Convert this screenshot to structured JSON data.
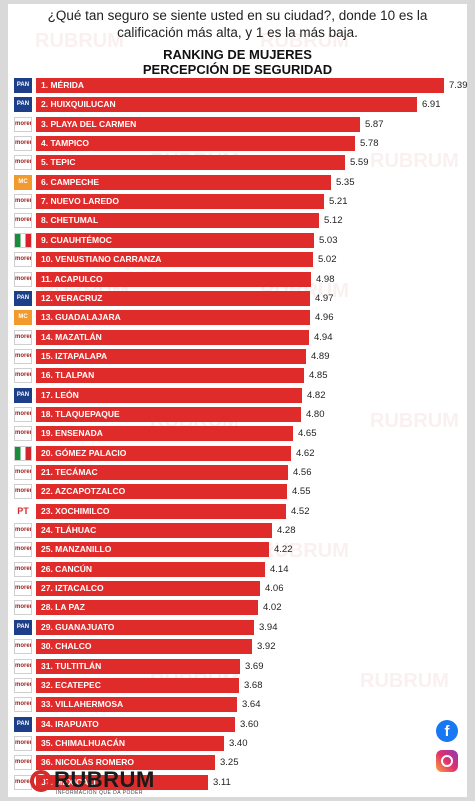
{
  "header": {
    "question_line1": "¿Qué tan seguro se siente usted en su ciudad?, donde 10 es la",
    "question_line2": "calificación más alta, y  1 es la más baja."
  },
  "chart_data": {
    "type": "bar",
    "orientation": "horizontal",
    "title_line1": "RANKING DE MUJERES",
    "title_line2": "PERCEPCIÓN DE SEGURIDAD",
    "xlim": [
      0,
      7.39
    ],
    "grid": false,
    "bar_color": "#e02b2b",
    "categories": [
      "1. MÉRIDA",
      "2. HUIXQUILUCAN",
      "3. PLAYA DEL CARMEN",
      "4. TAMPICO",
      "5. TEPIC",
      "6. CAMPECHE",
      "7. NUEVO LAREDO",
      "8. CHETUMAL",
      "9. CUAUHTÉMOC",
      "10. VENUSTIANO CARRANZA",
      "11. ACAPULCO",
      "12. VERACRUZ",
      "13. GUADALAJARA",
      "14. MAZATLÁN",
      "15. IZTAPALAPA",
      "16. TLALPAN",
      "17. LEÓN",
      "18. TLAQUEPAQUE",
      "19. ENSENADA",
      "20. GÓMEZ PALACIO",
      "21. TECÁMAC",
      "22. AZCAPOTZALCO",
      "23. XOCHIMILCO",
      "24. TLÁHUAC",
      "25. MANZANILLO",
      "26. CANCÚN",
      "27. IZTACALCO",
      "28. LA PAZ",
      "29. GUANAJUATO",
      "30. CHALCO",
      "31. TULTITLÁN",
      "32. ECATEPEC",
      "33. VILLAHERMOSA",
      "34. IRAPUATO",
      "35. CHIMALHUACÁN",
      "36. NICOLÁS ROMERO",
      "37. MEXICALI"
    ],
    "values": [
      7.39,
      6.91,
      5.87,
      5.78,
      5.59,
      5.35,
      5.21,
      5.12,
      5.03,
      5.02,
      4.98,
      4.97,
      4.96,
      4.94,
      4.89,
      4.85,
      4.82,
      4.8,
      4.65,
      4.62,
      4.56,
      4.55,
      4.52,
      4.28,
      4.22,
      4.14,
      4.06,
      4.02,
      3.94,
      3.92,
      3.69,
      3.68,
      3.64,
      3.6,
      3.4,
      3.25,
      3.11
    ],
    "value_labels": [
      "7.39",
      "6.91",
      "5.87",
      "5.78",
      "5.59",
      "5.35",
      "5.21",
      "5.12",
      "5.03",
      "5.02",
      "4.98",
      "4.97",
      "4.96",
      "4.94",
      "4.89",
      "4.85",
      "4.82",
      "4.80",
      "4.65",
      "4.62",
      "4.56",
      "4.55",
      "4.52",
      "4.28",
      "4.22",
      "4.14",
      "4.06",
      "4.02",
      "3.94",
      "3.92",
      "3.69",
      "3.68",
      "3.64",
      "3.60",
      "3.40",
      "3.25",
      "3.11"
    ],
    "party_icons": [
      "pan",
      "pan",
      "morena",
      "morena",
      "morena",
      "mc",
      "morena",
      "morena",
      "pri",
      "morena",
      "morena",
      "pan",
      "mc",
      "morena",
      "morena",
      "morena",
      "pan",
      "morena",
      "morena",
      "pri",
      "morena",
      "morena",
      "pt",
      "morena",
      "morena",
      "morena",
      "morena",
      "morena",
      "pan",
      "morena",
      "morena",
      "morena",
      "morena",
      "pan",
      "morena",
      "morena",
      "morena"
    ],
    "party_labels": {
      "pan": "PAN",
      "mc": "MC",
      "pt": "PT",
      "pri": "PRI",
      "morena": "morena"
    }
  },
  "watermark": "RUBRUM",
  "brand": {
    "name": "RUBRUM",
    "tagline": "INFORMACIÓN QUE DA PODER"
  },
  "social": {
    "facebook_glyph": "f"
  }
}
